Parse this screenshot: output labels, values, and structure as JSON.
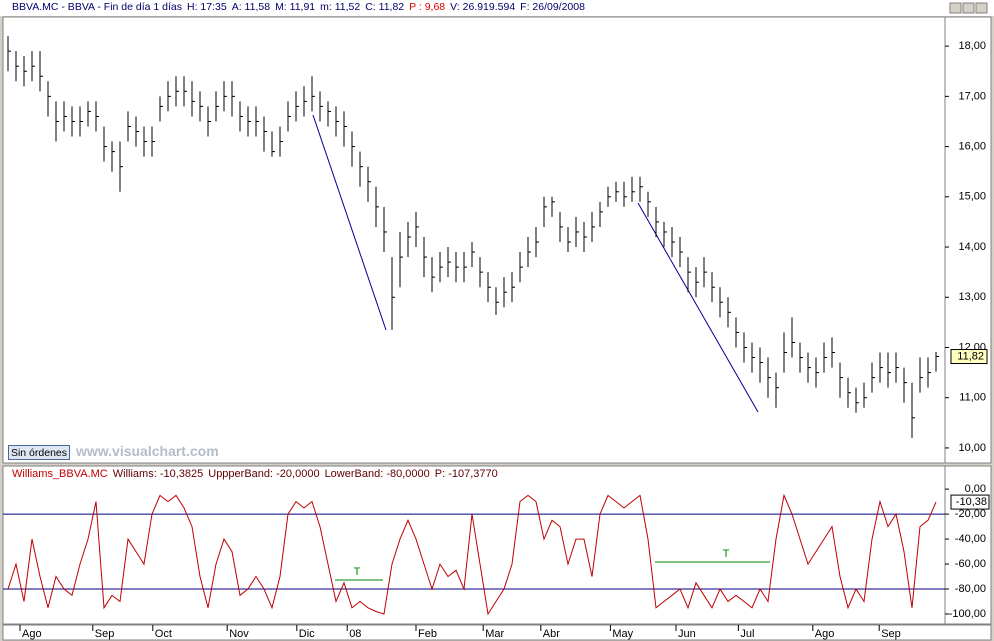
{
  "header": [
    {
      "text": "BBVA.MC - BBVA - Fin de día 1 días",
      "color": "#00006a"
    },
    {
      "text": "H: 17:35",
      "color": "#00006a"
    },
    {
      "text": "A: 11,58",
      "color": "#00006a"
    },
    {
      "text": "M: 11,91",
      "color": "#00006a"
    },
    {
      "text": "m: 11,52",
      "color": "#00006a"
    },
    {
      "text": "C: 11,82",
      "color": "#00006a"
    },
    {
      "text": "P : 9,68",
      "color": "#e00000"
    },
    {
      "text": "V: 26.919.594",
      "color": "#00006a"
    },
    {
      "text": "F: 26/09/2008",
      "color": "#00006a"
    }
  ],
  "button": "Sin órdenes",
  "watermark": "www.visualchart.com",
  "chart_data": [
    {
      "type": "ohlc",
      "color": "#000000",
      "xlim": [
        -1,
        117.125
      ],
      "ylim": [
        9.7,
        18.58
      ],
      "yticks": [
        {
          "value": 10,
          "label": "10,00"
        },
        {
          "value": 11,
          "label": "11,00"
        },
        {
          "value": 12,
          "label": "12,00"
        },
        {
          "value": 13,
          "label": "13,00"
        },
        {
          "value": 14,
          "label": "14,00"
        },
        {
          "value": 15,
          "label": "15,00"
        },
        {
          "value": 16,
          "label": "16,00"
        },
        {
          "value": 17,
          "label": "17,00"
        },
        {
          "value": 18,
          "label": "18,00"
        }
      ],
      "last_label": "11,82",
      "grid": false,
      "high": [
        18.2,
        17.9,
        17.8,
        17.9,
        17.9,
        17.3,
        16.9,
        16.9,
        16.8,
        16.8,
        16.9,
        16.9,
        16.4,
        16.1,
        16.1,
        16.7,
        16.6,
        16.4,
        16.4,
        17.0,
        17.3,
        17.4,
        17.4,
        17.3,
        17.1,
        16.8,
        17.1,
        17.3,
        17.3,
        16.9,
        16.8,
        16.8,
        16.6,
        16.3,
        16.4,
        16.9,
        17.1,
        17.2,
        17.4,
        17.1,
        16.9,
        16.8,
        16.7,
        16.3,
        15.9,
        15.6,
        15.2,
        14.8,
        13.8,
        14.3,
        14.5,
        14.7,
        14.2,
        13.8,
        13.9,
        14.0,
        13.9,
        13.9,
        14.1,
        13.8,
        13.5,
        13.2,
        13.4,
        13.5,
        13.9,
        14.2,
        14.4,
        15.0,
        15.0,
        14.7,
        14.4,
        14.6,
        14.5,
        14.7,
        14.9,
        15.2,
        15.3,
        15.3,
        15.4,
        15.4,
        15.1,
        14.8,
        14.5,
        14.4,
        14.2,
        13.8,
        13.6,
        13.8,
        13.5,
        13.2,
        13.0,
        12.6,
        12.3,
        12.1,
        12.0,
        11.8,
        11.5,
        12.3,
        12.6,
        12.1,
        11.9,
        11.8,
        12.1,
        12.2,
        11.7,
        11.4,
        11.2,
        11.3,
        11.7,
        11.9,
        11.9,
        11.9,
        11.6,
        11.3,
        11.8,
        11.8,
        11.91
      ],
      "low": [
        17.5,
        17.3,
        17.2,
        17.3,
        17.1,
        16.6,
        16.1,
        16.3,
        16.2,
        16.2,
        16.4,
        16.3,
        15.7,
        15.5,
        15.1,
        16.1,
        16.0,
        15.8,
        15.8,
        16.5,
        16.7,
        16.8,
        16.8,
        16.6,
        16.5,
        16.2,
        16.5,
        16.7,
        16.6,
        16.3,
        16.2,
        16.2,
        15.9,
        15.8,
        15.8,
        16.3,
        16.5,
        16.6,
        16.7,
        16.5,
        16.4,
        16.2,
        16.0,
        15.6,
        15.2,
        14.9,
        14.4,
        13.9,
        12.35,
        13.2,
        13.8,
        14.0,
        13.4,
        13.1,
        13.3,
        13.4,
        13.3,
        13.3,
        13.6,
        13.2,
        12.9,
        12.65,
        12.8,
        12.9,
        13.3,
        13.6,
        13.8,
        14.4,
        14.6,
        14.1,
        13.9,
        14.0,
        13.9,
        14.1,
        14.4,
        14.8,
        14.9,
        14.8,
        14.9,
        14.9,
        14.6,
        14.2,
        14.0,
        13.8,
        13.6,
        13.1,
        13.0,
        13.2,
        12.9,
        12.6,
        12.4,
        12.0,
        11.7,
        11.5,
        11.3,
        11.0,
        10.8,
        11.5,
        11.8,
        11.5,
        11.3,
        11.2,
        11.5,
        11.6,
        11.0,
        10.8,
        10.7,
        10.8,
        11.1,
        11.3,
        11.2,
        11.3,
        10.9,
        10.2,
        11.1,
        11.2,
        11.52
      ],
      "close": [
        17.9,
        17.6,
        17.5,
        17.6,
        17.4,
        17.0,
        16.5,
        16.6,
        16.5,
        16.5,
        16.7,
        16.6,
        16.0,
        15.9,
        15.6,
        16.4,
        16.3,
        16.1,
        16.1,
        16.8,
        17.0,
        17.1,
        17.1,
        16.9,
        16.8,
        16.5,
        16.8,
        17.0,
        17.0,
        16.6,
        16.5,
        16.5,
        16.3,
        15.9,
        16.1,
        16.6,
        16.8,
        16.9,
        17.0,
        16.8,
        16.7,
        16.5,
        16.4,
        16.0,
        15.6,
        15.3,
        14.8,
        14.3,
        13.0,
        13.8,
        14.2,
        14.4,
        13.8,
        13.4,
        13.6,
        13.7,
        13.6,
        13.6,
        13.9,
        13.5,
        13.2,
        12.9,
        13.1,
        13.2,
        13.6,
        13.9,
        14.1,
        14.8,
        14.9,
        14.4,
        14.1,
        14.3,
        14.2,
        14.4,
        14.7,
        15.0,
        15.1,
        15.0,
        15.1,
        15.2,
        14.9,
        14.5,
        14.3,
        14.1,
        13.9,
        13.5,
        13.3,
        13.5,
        13.2,
        12.9,
        12.7,
        12.3,
        12.0,
        11.8,
        11.7,
        11.4,
        11.2,
        11.9,
        12.1,
        11.8,
        11.6,
        11.5,
        11.8,
        11.9,
        11.4,
        11.1,
        10.9,
        11.0,
        11.4,
        11.6,
        11.5,
        11.6,
        11.3,
        10.6,
        11.4,
        11.5,
        11.82
      ]
    },
    {
      "type": "line",
      "title": [
        "Williams_BBVA.MC",
        "Williams: -10,3825",
        "UppperBand: -20,0000",
        "LowerBand: -80,0000",
        "P: -107,3770"
      ],
      "xlim": [
        -1,
        117.125
      ],
      "ylim": [
        -108,
        5.7
      ],
      "yticks": [
        {
          "value": 0,
          "label": "0,00"
        },
        {
          "value": -20,
          "label": "-20,00"
        },
        {
          "value": -40,
          "label": "-40,00"
        },
        {
          "value": -60,
          "label": "-60,00"
        },
        {
          "value": -80,
          "label": "-80,00"
        },
        {
          "value": -100,
          "label": "-100,00"
        }
      ],
      "xticks": [
        {
          "value": 1.5,
          "label": "Ago"
        },
        {
          "value": 10.6,
          "label": "Sep"
        },
        {
          "value": 18.1,
          "label": "Oct"
        },
        {
          "value": 27.4,
          "label": "Nov"
        },
        {
          "value": 36.1,
          "label": "Dic"
        },
        {
          "value": 42.4,
          "label": "08"
        },
        {
          "value": 51,
          "label": "Feb"
        },
        {
          "value": 59.4,
          "label": "Mar"
        },
        {
          "value": 66.6,
          "label": "Abr"
        },
        {
          "value": 75.3,
          "label": "May"
        },
        {
          "value": 83.5,
          "label": "Jun"
        },
        {
          "value": 91.3,
          "label": "Jul"
        },
        {
          "value": 100.6,
          "label": "Ago"
        },
        {
          "value": 108.9,
          "label": "Sep"
        }
      ],
      "bands": [
        -20,
        -80
      ],
      "band_color": "#000080",
      "last_label": "-10,38",
      "annotations": [
        "T",
        "T"
      ],
      "series": [
        {
          "name": "Williams",
          "color": "#c00000",
          "values": [
            -80,
            -60,
            -90,
            -40,
            -70,
            -95,
            -70,
            -80,
            -85,
            -60,
            -40,
            -10,
            -95,
            -85,
            -90,
            -40,
            -50,
            -60,
            -20,
            -5,
            -10,
            -5,
            -15,
            -30,
            -70,
            -95,
            -60,
            -40,
            -50,
            -85,
            -80,
            -70,
            -80,
            -95,
            -70,
            -20,
            -10,
            -15,
            -10,
            -30,
            -60,
            -90,
            -75,
            -95,
            -90,
            -95,
            -98,
            -100,
            -60,
            -40,
            -25,
            -40,
            -60,
            -80,
            -60,
            -70,
            -65,
            -80,
            -20,
            -60,
            -100,
            -90,
            -80,
            -60,
            -10,
            -5,
            -10,
            -40,
            -25,
            -30,
            -60,
            -40,
            -40,
            -70,
            -20,
            -5,
            -10,
            -15,
            -10,
            -5,
            -40,
            -95,
            -90,
            -85,
            -80,
            -95,
            -75,
            -85,
            -95,
            -80,
            -90,
            -85,
            -90,
            -95,
            -80,
            -90,
            -40,
            -5,
            -20,
            -40,
            -60,
            -50,
            -40,
            -30,
            -70,
            -95,
            -80,
            -90,
            -40,
            -10,
            -30,
            -20,
            -50,
            -95,
            -30,
            -25,
            -10.3825
          ]
        }
      ]
    }
  ]
}
